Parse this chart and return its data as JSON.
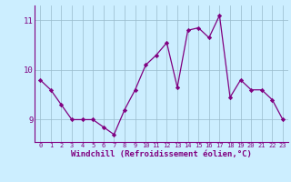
{
  "x": [
    0,
    1,
    2,
    3,
    4,
    5,
    6,
    7,
    8,
    9,
    10,
    11,
    12,
    13,
    14,
    15,
    16,
    17,
    18,
    19,
    20,
    21,
    22,
    23
  ],
  "y": [
    9.8,
    9.6,
    9.3,
    9.0,
    9.0,
    9.0,
    8.85,
    8.7,
    9.2,
    9.6,
    10.1,
    10.3,
    10.55,
    9.65,
    10.8,
    10.85,
    10.65,
    11.1,
    9.45,
    9.8,
    9.6,
    9.6,
    9.4,
    9.0
  ],
  "xlabel": "Windchill (Refroidissement éolien,°C)",
  "ylabel": "",
  "ylim": [
    8.55,
    11.3
  ],
  "yticks": [
    9,
    10,
    11
  ],
  "ytick_labels": [
    "9",
    "10",
    "11"
  ],
  "xtick_labels": [
    "0",
    "1",
    "2",
    "3",
    "4",
    "5",
    "6",
    "7",
    "8",
    "9",
    "10",
    "11",
    "12",
    "13",
    "14",
    "15",
    "16",
    "17",
    "18",
    "19",
    "20",
    "21",
    "22",
    "23"
  ],
  "line_color": "#800080",
  "marker": "D",
  "marker_size": 2.2,
  "bg_color": "#cceeff",
  "grid_color": "#99bbcc",
  "title": ""
}
